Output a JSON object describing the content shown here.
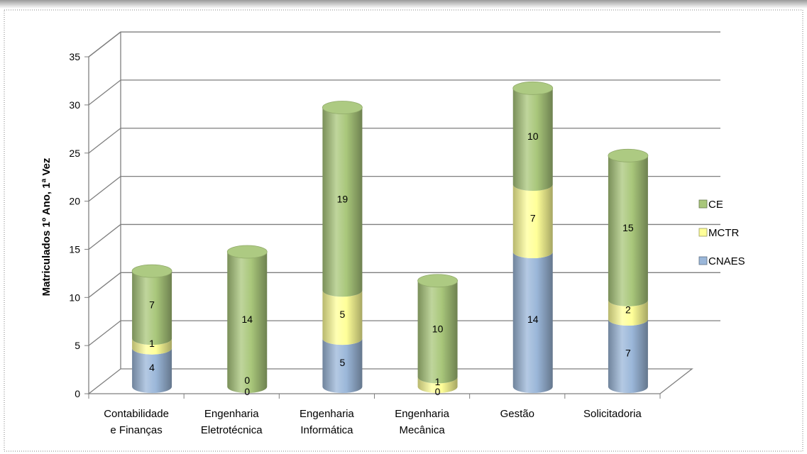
{
  "chart_data": {
    "type": "bar",
    "subtype": "stacked-3d-cylinder",
    "title": "",
    "xlabel": "",
    "ylabel": "Matriculados 1º Ano, 1ª Vez",
    "ylim": [
      0,
      35
    ],
    "yticks": [
      0,
      5,
      10,
      15,
      20,
      25,
      30,
      35
    ],
    "grid": true,
    "legend_position": "right",
    "categories": [
      [
        "Contabilidade",
        "e Finanças"
      ],
      [
        "Engenharia",
        "Eletrotécnica"
      ],
      [
        "Engenharia",
        "Informática"
      ],
      [
        "Engenharia",
        "Mecânica"
      ],
      [
        "Gestão"
      ],
      [
        "Solicitadoria"
      ]
    ],
    "series": [
      {
        "name": "CNAES",
        "values": [
          4,
          0,
          5,
          0,
          14,
          7
        ],
        "color": "#9bb7d9"
      },
      {
        "name": "MCTR",
        "values": [
          1,
          0,
          5,
          1,
          7,
          2
        ],
        "color": "#ffff99"
      },
      {
        "name": "CE",
        "values": [
          7,
          14,
          19,
          10,
          10,
          15
        ],
        "color": "#a9c77b"
      }
    ]
  }
}
